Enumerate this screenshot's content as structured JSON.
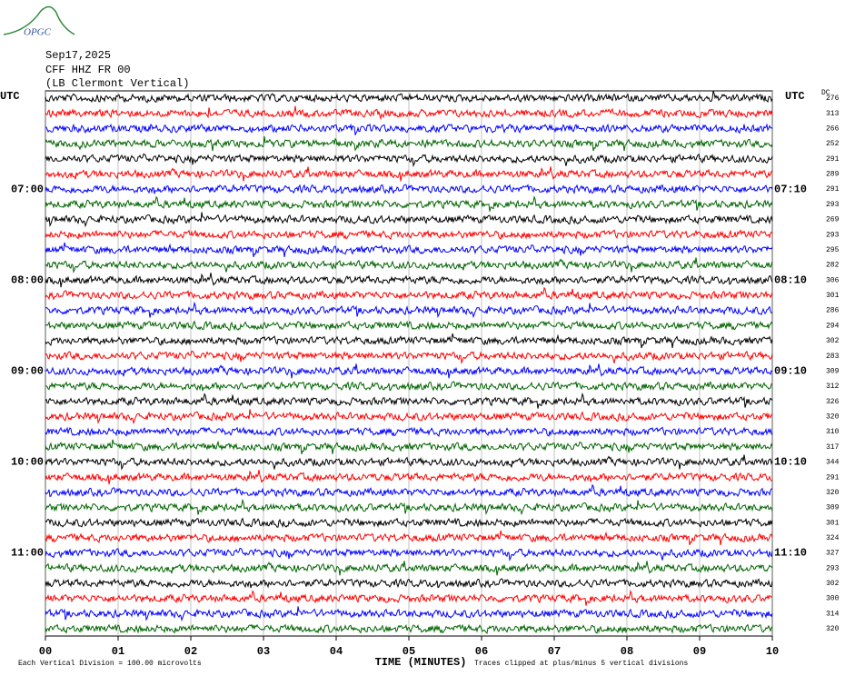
{
  "logo": "OPGC",
  "header": {
    "date": "Sep17,2025",
    "station": "CFF HHZ FR 00",
    "location": "(LB  Clermont Vertical)"
  },
  "chart_data": {
    "type": "helicorder",
    "left_axis_title": "UTC",
    "right_axis_title": "UTC",
    "dc_title": "DC",
    "trace_colors": [
      "#000000",
      "#ff0000",
      "#0000ff",
      "#006400"
    ],
    "rows": [
      {
        "dc": 276
      },
      {
        "dc": 313
      },
      {
        "dc": 266
      },
      {
        "dc": 252
      },
      {
        "dc": 291
      },
      {
        "dc": 289
      },
      {
        "dc": 291,
        "left": "07:00",
        "right": "07:10"
      },
      {
        "dc": 293
      },
      {
        "dc": 269
      },
      {
        "dc": 293
      },
      {
        "dc": 295
      },
      {
        "dc": 282
      },
      {
        "dc": 306,
        "left": "08:00",
        "right": "08:10"
      },
      {
        "dc": 301
      },
      {
        "dc": 286
      },
      {
        "dc": 294
      },
      {
        "dc": 302
      },
      {
        "dc": 283
      },
      {
        "dc": 309,
        "left": "09:00",
        "right": "09:10"
      },
      {
        "dc": 312
      },
      {
        "dc": 326
      },
      {
        "dc": 320
      },
      {
        "dc": 310
      },
      {
        "dc": 317
      },
      {
        "dc": 344,
        "left": "10:00",
        "right": "10:10"
      },
      {
        "dc": 291
      },
      {
        "dc": 320
      },
      {
        "dc": 309
      },
      {
        "dc": 301
      },
      {
        "dc": 324
      },
      {
        "dc": 327,
        "left": "11:00",
        "right": "11:10"
      },
      {
        "dc": 293
      },
      {
        "dc": 302
      },
      {
        "dc": 300
      },
      {
        "dc": 314
      },
      {
        "dc": 320
      }
    ],
    "xlim": [
      0,
      10
    ],
    "xticks": [
      {
        "value": 0,
        "label": "00"
      },
      {
        "value": 1,
        "label": "01"
      },
      {
        "value": 2,
        "label": "02"
      },
      {
        "value": 3,
        "label": "03"
      },
      {
        "value": 4,
        "label": "04"
      },
      {
        "value": 5,
        "label": "05"
      },
      {
        "value": 6,
        "label": "06"
      },
      {
        "value": 7,
        "label": "07"
      },
      {
        "value": 8,
        "label": "08"
      },
      {
        "value": 9,
        "label": "09"
      },
      {
        "value": 10,
        "label": "10"
      }
    ],
    "xlabel": "TIME (MINUTES)",
    "scale_note": "Each Vertical Division =  100.00 microvolts",
    "clip_note": "Traces clipped at plus/minus 5 vertical divisions",
    "grid": true
  }
}
